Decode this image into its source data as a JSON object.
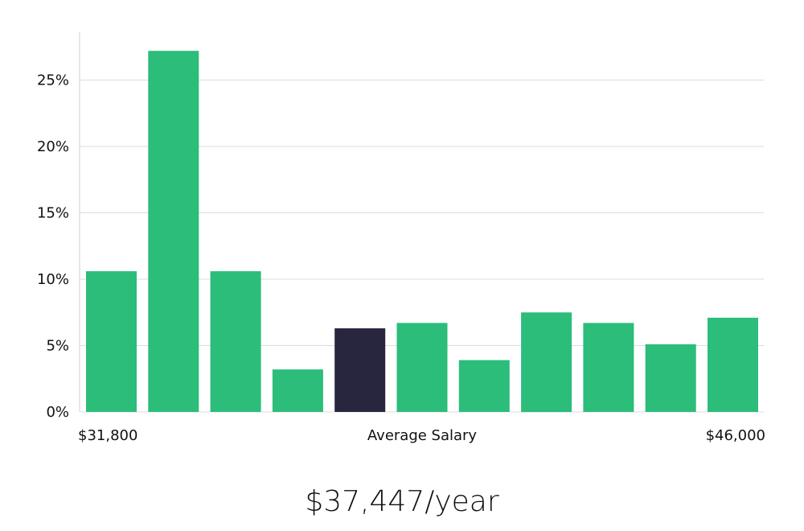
{
  "chart_data": {
    "type": "bar",
    "values": [
      10.6,
      27.2,
      10.6,
      3.2,
      6.3,
      6.7,
      3.9,
      7.5,
      6.7,
      5.1,
      7.1
    ],
    "highlight_index": 4,
    "colors": {
      "bar": "#2bbd79",
      "highlight": "#28253f",
      "grid": "#dcdcdc"
    },
    "ylim": [
      0,
      28
    ],
    "yticks": [
      0,
      5,
      10,
      15,
      20,
      25
    ],
    "ytick_suffix": "%",
    "x_min_label": "$31,800",
    "x_center_label": "Average Salary",
    "x_max_label": "$46,000",
    "grid": true,
    "summary": "$37,447/year"
  }
}
